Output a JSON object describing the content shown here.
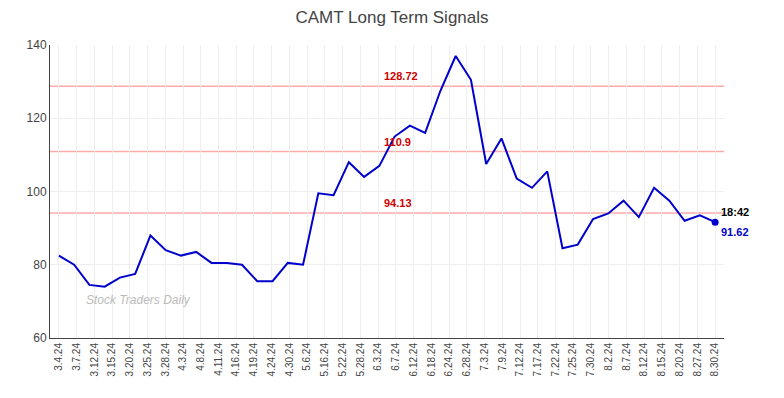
{
  "chart_data": {
    "type": "line",
    "title": "CAMT Long Term Signals",
    "watermark": "Stock Traders Daily",
    "x": [
      0,
      0.860465,
      1.72093,
      2.581395,
      3.44186,
      4.302326,
      5.162791,
      6.023256,
      6.883721,
      7.744186,
      8.604651,
      9.465116,
      10.325581,
      11.186047,
      12.046512,
      12.906977,
      13.767442,
      14.627907,
      15.488372,
      16.348837,
      17.209302,
      18.069767,
      18.930233,
      19.790698,
      20.651163,
      21.511628,
      22.372093,
      23.232558,
      24.093023,
      24.953488,
      25.813953,
      26.674419,
      27.534884,
      28.395349,
      29.255814,
      30.116279,
      30.976744,
      31.837209,
      32.697674,
      33.55814,
      34.418605,
      35.27907,
      36.139535,
      37
    ],
    "values": [
      82.5,
      80.0,
      74.5,
      74.0,
      76.5,
      77.5,
      88.0,
      84.0,
      82.5,
      83.5,
      80.5,
      80.5,
      80.0,
      75.5,
      75.5,
      80.5,
      80.0,
      99.5,
      99.0,
      108.0,
      104.0,
      107.0,
      115.0,
      118.0,
      116.0,
      127.5,
      137.0,
      130.5,
      107.5,
      114.5,
      103.5,
      101.0,
      105.5,
      84.5,
      85.5,
      92.5,
      94.0,
      97.5,
      93.0,
      101.0,
      97.5,
      92.0,
      93.5,
      91.62
    ],
    "color": "#0000cc",
    "last_point": {
      "color": "#0000cc"
    },
    "xlim": [
      -0.5,
      37.5
    ],
    "xticks": [
      {
        "value": 0,
        "label": "3.4.24"
      },
      {
        "value": 1,
        "label": "3.7.24"
      },
      {
        "value": 2,
        "label": "3.12.24"
      },
      {
        "value": 3,
        "label": "3.15.24"
      },
      {
        "value": 4,
        "label": "3.20.24"
      },
      {
        "value": 5,
        "label": "3.25.24"
      },
      {
        "value": 6,
        "label": "3.28.24"
      },
      {
        "value": 7,
        "label": "4.3.24"
      },
      {
        "value": 8,
        "label": "4.8.24"
      },
      {
        "value": 9,
        "label": "4.11.24"
      },
      {
        "value": 10,
        "label": "4.16.24"
      },
      {
        "value": 11,
        "label": "4.19.24"
      },
      {
        "value": 12,
        "label": "4.24.24"
      },
      {
        "value": 13,
        "label": "4.30.24"
      },
      {
        "value": 14,
        "label": "5.6.24"
      },
      {
        "value": 15,
        "label": "5.16.24"
      },
      {
        "value": 16,
        "label": "5.22.24"
      },
      {
        "value": 17,
        "label": "5.28.24"
      },
      {
        "value": 18,
        "label": "6.3.24"
      },
      {
        "value": 19,
        "label": "6.7.24"
      },
      {
        "value": 20,
        "label": "6.12.24"
      },
      {
        "value": 21,
        "label": "6.18.24"
      },
      {
        "value": 22,
        "label": "6.24.24"
      },
      {
        "value": 23,
        "label": "6.28.24"
      },
      {
        "value": 24,
        "label": "7.3.24"
      },
      {
        "value": 25,
        "label": "7.9.24"
      },
      {
        "value": 26,
        "label": "7.12.24"
      },
      {
        "value": 27,
        "label": "7.17.24"
      },
      {
        "value": 28,
        "label": "7.22.24"
      },
      {
        "value": 29,
        "label": "7.25.24"
      },
      {
        "value": 30,
        "label": "7.30.24"
      },
      {
        "value": 31,
        "label": "8.2.24"
      },
      {
        "value": 32,
        "label": "8.7.24"
      },
      {
        "value": 33,
        "label": "8.12.24"
      },
      {
        "value": 34,
        "label": "8.15.24"
      },
      {
        "value": 35,
        "label": "8.20.24"
      },
      {
        "value": 36,
        "label": "8.27.24"
      },
      {
        "value": 37,
        "label": "8.30.24"
      }
    ],
    "ylim": [
      60,
      140
    ],
    "yticks": [
      60,
      80,
      100,
      120,
      140
    ],
    "grid": true,
    "hlines": [
      128.72,
      110.9,
      94.13
    ],
    "hline_color": "#ffaaaa",
    "annotations": [
      {
        "text": "128.72",
        "x": 18,
        "y": 128.72,
        "color": "#cc0000",
        "position": "above"
      },
      {
        "text": "110.9",
        "x": 18,
        "y": 110.9,
        "color": "#cc0000",
        "position": "above"
      },
      {
        "text": "94.13",
        "x": 18,
        "y": 94.13,
        "color": "#cc0000",
        "position": "above"
      },
      {
        "text": "18:42",
        "x": 37,
        "y": 91.62,
        "color": "#000000",
        "position": "above"
      },
      {
        "text": "91.62",
        "x": 37,
        "y": 91.62,
        "color": "#0000cc",
        "position": "below"
      }
    ]
  }
}
